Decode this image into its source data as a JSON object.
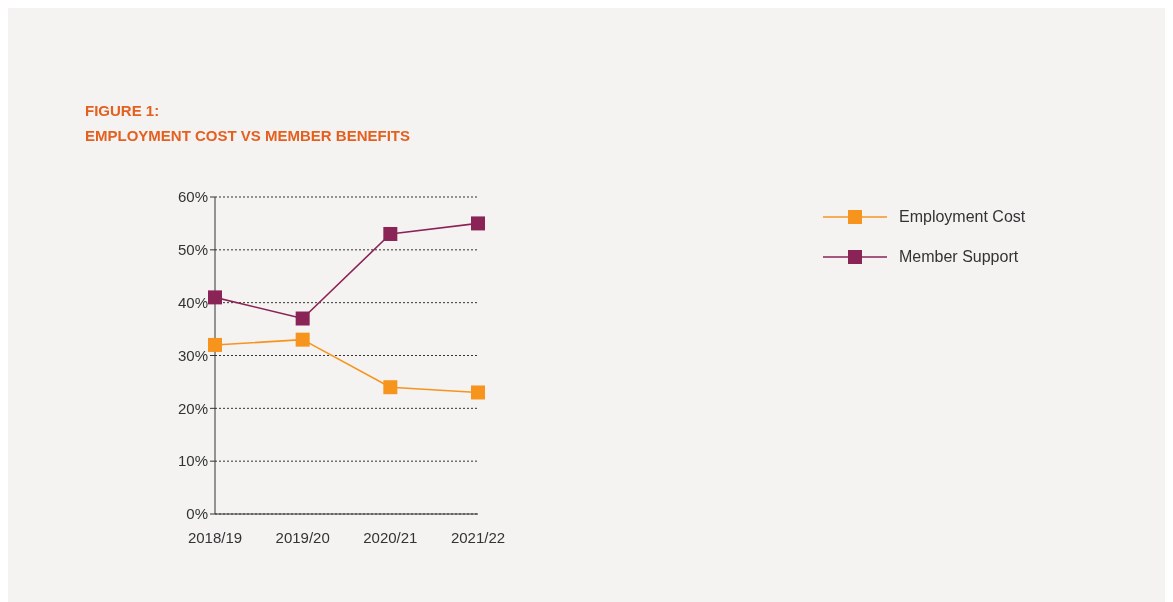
{
  "chart_data": {
    "type": "line",
    "title": "FIGURE 1:\nEMPLOYMENT COST VS MEMBER BENEFITS",
    "categories": [
      "2018/19",
      "2019/20",
      "2020/21",
      "2021/22"
    ],
    "series": [
      {
        "name": "Employment Cost",
        "color": "#f7941d",
        "values": [
          32,
          33,
          24,
          23
        ]
      },
      {
        "name": "Member Support",
        "color": "#8b2456",
        "values": [
          41,
          37,
          53,
          55
        ]
      }
    ],
    "ylim": [
      0,
      60
    ],
    "yticks": [
      {
        "value": 0,
        "label": "0%"
      },
      {
        "value": 10,
        "label": "10%"
      },
      {
        "value": 20,
        "label": "20%"
      },
      {
        "value": 30,
        "label": "30%"
      },
      {
        "value": 40,
        "label": "40%"
      },
      {
        "value": 50,
        "label": "50%"
      },
      {
        "value": 60,
        "label": "60%"
      }
    ],
    "grid": "y",
    "legend": "right",
    "marker": "square",
    "line_style": "solid"
  }
}
